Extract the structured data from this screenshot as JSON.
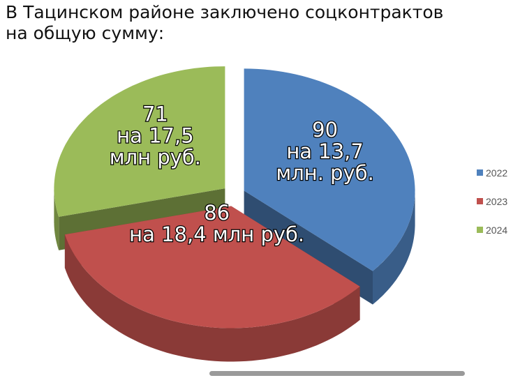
{
  "chart_data": {
    "type": "pie3d",
    "title": [
      "В Тацинском районе заключено соцконтрактов",
      "на общую сумму:"
    ],
    "categories": [
      "2022",
      "2023",
      "2024"
    ],
    "values": [
      90,
      86,
      71
    ],
    "colors": [
      "#4f81bd",
      "#c0504d",
      "#9bbb59"
    ],
    "sum_labels": [
      [
        "на 13,7",
        "млн. руб."
      ],
      [
        "на 18,4 млн руб."
      ],
      [
        "на 17,5",
        "млн руб."
      ]
    ],
    "legend": "right"
  }
}
